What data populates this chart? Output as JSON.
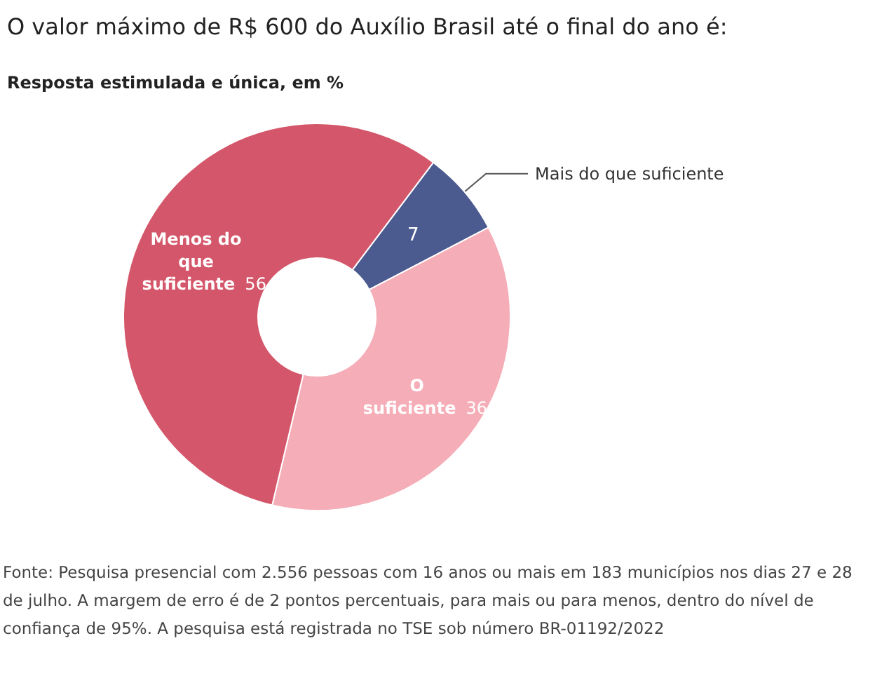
{
  "chart_data": {
    "type": "donut",
    "title": "O valor máximo de R$ 600 do Auxílio Brasil até o final do ano é:",
    "subtitle": "Resposta estimulada e única, em %",
    "categories": [
      "Mais do que suficiente",
      "O suficiente",
      "Menos do que suficiente"
    ],
    "values": [
      7,
      36,
      56
    ],
    "colors": [
      "#4b5b8f",
      "#f5adb7",
      "#d4566a"
    ],
    "data_labels": true,
    "legend": false,
    "annotations": [
      "Fonte: Pesquisa presencial com 2.556 pessoas com 16 anos ou mais em 183 municípios nos dias 27 e 28 de julho. A margem de erro é de 2 pontos percentuais, para mais ou para menos, dentro do nível de confiança de 95%. A pesquisa está registrada no TSE sob número BR-01192/2022"
    ]
  }
}
